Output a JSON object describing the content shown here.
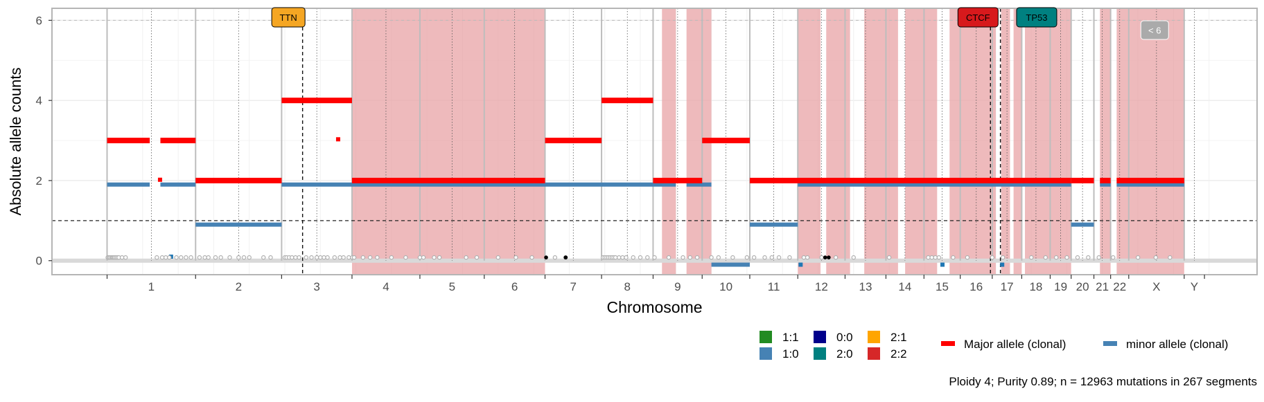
{
  "chart_data": {
    "type": "scatter",
    "xlabel": "Chromosome",
    "ylabel": "Absolute allele counts",
    "ylim": [
      -0.35,
      6.3
    ],
    "yticks": [
      0,
      2,
      4,
      6
    ],
    "grid": true,
    "chromosomes": [
      {
        "label": "1",
        "start": 0,
        "end": 249
      },
      {
        "label": "2",
        "start": 249,
        "end": 491
      },
      {
        "label": "3",
        "start": 491,
        "end": 689
      },
      {
        "label": "4",
        "start": 689,
        "end": 880
      },
      {
        "label": "5",
        "start": 880,
        "end": 1061
      },
      {
        "label": "6",
        "start": 1061,
        "end": 1232
      },
      {
        "label": "7",
        "start": 1232,
        "end": 1391
      },
      {
        "label": "8",
        "start": 1391,
        "end": 1536
      },
      {
        "label": "9",
        "start": 1536,
        "end": 1674
      },
      {
        "label": "10",
        "start": 1674,
        "end": 1808
      },
      {
        "label": "11",
        "start": 1808,
        "end": 1943
      },
      {
        "label": "12",
        "start": 1943,
        "end": 2076
      },
      {
        "label": "13",
        "start": 2076,
        "end": 2191
      },
      {
        "label": "14",
        "start": 2191,
        "end": 2298
      },
      {
        "label": "15",
        "start": 2298,
        "end": 2400
      },
      {
        "label": "16",
        "start": 2400,
        "end": 2490
      },
      {
        "label": "17",
        "start": 2490,
        "end": 2573
      },
      {
        "label": "18",
        "start": 2573,
        "end": 2653
      },
      {
        "label": "19",
        "start": 2653,
        "end": 2712
      },
      {
        "label": "20",
        "start": 2712,
        "end": 2776
      },
      {
        "label": "21",
        "start": 2776,
        "end": 2823
      },
      {
        "label": "22",
        "start": 2823,
        "end": 2874
      },
      {
        "label": "X",
        "start": 2874,
        "end": 3030
      },
      {
        "label": "Y",
        "start": 3030,
        "end": 3087
      }
    ],
    "xlim": [
      -155,
      3235
    ],
    "shaded_regions": [
      [
        689,
        1232
      ],
      [
        1561,
        1600
      ],
      [
        1630,
        1700
      ],
      [
        1943,
        2007
      ],
      [
        2023,
        2090
      ],
      [
        2130,
        2225
      ],
      [
        2245,
        2335
      ],
      [
        2370,
        2500
      ],
      [
        2515,
        2540
      ],
      [
        2550,
        2573
      ],
      [
        2582,
        2712
      ],
      [
        2793,
        2823
      ],
      [
        2840,
        3030
      ]
    ],
    "major_allele_segments": [
      [
        0,
        120,
        3
      ],
      [
        150,
        249,
        3
      ],
      [
        249,
        491,
        2
      ],
      [
        491,
        689,
        4
      ],
      [
        689,
        1232,
        2
      ],
      [
        1232,
        1391,
        3
      ],
      [
        1391,
        1536,
        4
      ],
      [
        1536,
        1674,
        2
      ],
      [
        1674,
        1808,
        3
      ],
      [
        1808,
        2712,
        2
      ],
      [
        2712,
        2776,
        2
      ],
      [
        2793,
        2823,
        2
      ],
      [
        2840,
        3030,
        2
      ]
    ],
    "minor_allele_segments": [
      [
        0,
        120,
        1.9
      ],
      [
        150,
        249,
        1.9
      ],
      [
        249,
        491,
        0.9
      ],
      [
        491,
        1536,
        1.9
      ],
      [
        1536,
        1600,
        1.9
      ],
      [
        1630,
        1700,
        1.9
      ],
      [
        1700,
        1808,
        -0.1
      ],
      [
        1808,
        1943,
        0.9
      ],
      [
        1943,
        2712,
        1.9
      ],
      [
        2712,
        2776,
        0.9
      ],
      [
        2793,
        2823,
        1.9
      ],
      [
        2840,
        3030,
        1.9
      ]
    ],
    "small_marks": [
      [
        180,
        0.1,
        "#1f77b4"
      ],
      [
        1951,
        -0.1,
        "#1f77b4"
      ],
      [
        2350,
        -0.1,
        "#1f77b4"
      ],
      [
        2518,
        -0.1,
        "#1f77b4"
      ],
      [
        650,
        3.03,
        "#ff0000"
      ],
      [
        149,
        2.02,
        "#ff0000"
      ]
    ],
    "mutations_grey": [
      2,
      5,
      8,
      12,
      15,
      18,
      21,
      25,
      29,
      33,
      42,
      52,
      140,
      155,
      165,
      175,
      195,
      208,
      222,
      236,
      260,
      275,
      285,
      305,
      320,
      345,
      370,
      385,
      400,
      440,
      460,
      500,
      505,
      512,
      520,
      530,
      540,
      560,
      575,
      590,
      600,
      610,
      620,
      640,
      655,
      665,
      680,
      690,
      695,
      720,
      740,
      760,
      800,
      840,
      880,
      890,
      920,
      935,
      1010,
      1040,
      1100,
      1150,
      1195,
      1260,
      1290,
      1395,
      1400,
      1405,
      1410,
      1415,
      1420,
      1425,
      1430,
      1440,
      1450,
      1460,
      1480,
      1500,
      1520,
      1540,
      1580,
      1620,
      1640,
      1660,
      1700,
      1720,
      1760,
      1800,
      1820,
      1850,
      1870,
      1890,
      1920,
      1960,
      1970,
      2010,
      2050,
      2100,
      2200,
      2310,
      2320,
      2330,
      2340,
      2380,
      2420,
      2490,
      2520,
      2600,
      2640,
      2670,
      2700,
      2730,
      2760,
      2790,
      2830,
      2900,
      2950,
      2990
    ],
    "mutations_black": [
      1235,
      1290,
      2020,
      2030
    ],
    "reference_lines": {
      "ploidy_line": 1,
      "upper_line": 6
    },
    "vertical_dashed": [
      550,
      2485,
      2513
    ],
    "gene_labels": [
      {
        "label": "TTN",
        "position": 510,
        "color": "#F5A623"
      },
      {
        "label": "CTCF",
        "position": 2450,
        "color": "#D7191C"
      },
      {
        "label": "TP53",
        "position": 2615,
        "color": "#008080"
      },
      {
        "label": "< 6",
        "position": 2947,
        "color": "#AAAAAA"
      }
    ],
    "legend": {
      "karyotypes": [
        {
          "label": "1:1",
          "color": "#228B22"
        },
        {
          "label": "0:0",
          "color": "#00008B"
        },
        {
          "label": "2:1",
          "color": "#FFA500"
        },
        {
          "label": "1:0",
          "color": "#4682B4"
        },
        {
          "label": "2:0",
          "color": "#008080"
        },
        {
          "label": "2:2",
          "color": "#D62728"
        }
      ],
      "alleles": [
        {
          "label": "Major allele (clonal)",
          "color": "#FF0000"
        },
        {
          "label": "minor allele (clonal)",
          "color": "#4682B4"
        }
      ]
    },
    "caption": "Ploidy 4; Purity  0.89; n = 12963 mutations in 267 segments",
    "colors": {
      "shade": "#E8A0A2",
      "major": "#FF0000",
      "minor": "#4682B4",
      "mutation": "#B0B0B0",
      "mutation_black": "#000000",
      "panel_border": "#B5B5B5",
      "grid": "#EBEBEB"
    }
  }
}
